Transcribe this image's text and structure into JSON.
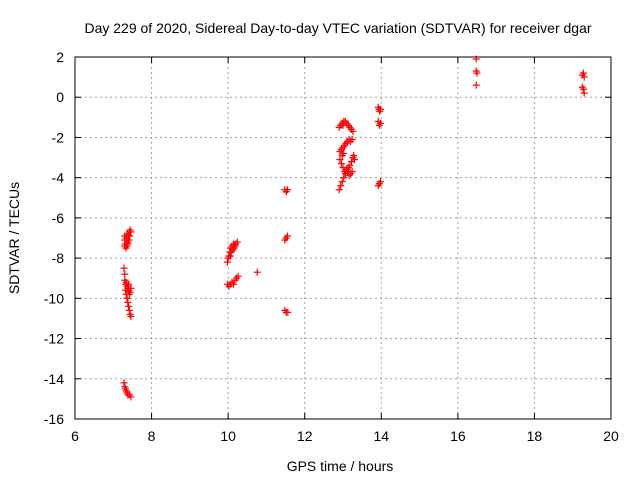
{
  "chart_data": {
    "type": "scatter",
    "title": "Day 229 of 2020, Sidereal Day-to-day VTEC variation (SDTVAR) for receiver dgar",
    "xlabel": "GPS time / hours",
    "ylabel": "SDTVAR / TECUs",
    "xlim": [
      6,
      20
    ],
    "ylim": [
      -16,
      2
    ],
    "xticks": [
      6,
      8,
      10,
      12,
      14,
      16,
      18,
      20
    ],
    "yticks": [
      -16,
      -14,
      -12,
      -10,
      -8,
      -6,
      -4,
      -2,
      0,
      2
    ],
    "grid": true,
    "marker": "plus",
    "color": "#ff0000",
    "series": [
      {
        "points": [
          [
            7.3,
            -6.9
          ],
          [
            7.3,
            -7.1
          ],
          [
            7.32,
            -7.3
          ],
          [
            7.34,
            -7.0
          ],
          [
            7.36,
            -6.8
          ],
          [
            7.38,
            -7.2
          ],
          [
            7.4,
            -6.9
          ],
          [
            7.42,
            -6.7
          ],
          [
            7.44,
            -6.6
          ],
          [
            7.46,
            -6.7
          ],
          [
            7.3,
            -7.4
          ],
          [
            7.33,
            -7.5
          ],
          [
            7.36,
            -7.4
          ],
          [
            7.38,
            -7.3
          ],
          [
            7.41,
            -7.1
          ],
          [
            7.43,
            -6.9
          ],
          [
            7.28,
            -8.5
          ],
          [
            7.3,
            -8.8
          ],
          [
            7.3,
            -9.1
          ],
          [
            7.32,
            -9.3
          ],
          [
            7.34,
            -9.2
          ],
          [
            7.36,
            -9.4
          ],
          [
            7.38,
            -9.5
          ],
          [
            7.4,
            -9.6
          ],
          [
            7.42,
            -9.8
          ],
          [
            7.44,
            -9.7
          ],
          [
            7.46,
            -9.5
          ],
          [
            7.34,
            -9.8
          ],
          [
            7.36,
            -10.0
          ],
          [
            7.38,
            -10.2
          ],
          [
            7.4,
            -10.4
          ],
          [
            7.42,
            -10.6
          ],
          [
            7.44,
            -10.8
          ],
          [
            7.46,
            -10.9
          ],
          [
            7.32,
            -9.6
          ],
          [
            7.4,
            -9.3
          ],
          [
            7.28,
            -14.2
          ],
          [
            7.3,
            -14.4
          ],
          [
            7.32,
            -14.5
          ],
          [
            7.34,
            -14.6
          ],
          [
            7.36,
            -14.7
          ],
          [
            7.38,
            -14.8
          ],
          [
            7.42,
            -14.8
          ],
          [
            7.46,
            -14.9
          ],
          [
            9.98,
            -8.2
          ],
          [
            10.0,
            -8.0
          ],
          [
            10.02,
            -7.9
          ],
          [
            10.04,
            -7.7
          ],
          [
            10.06,
            -7.5
          ],
          [
            10.08,
            -7.7
          ],
          [
            10.1,
            -7.4
          ],
          [
            10.12,
            -7.6
          ],
          [
            10.14,
            -7.3
          ],
          [
            10.16,
            -7.5
          ],
          [
            10.18,
            -7.4
          ],
          [
            10.2,
            -7.3
          ],
          [
            10.24,
            -7.2
          ],
          [
            10.06,
            -7.9
          ],
          [
            9.98,
            -9.3
          ],
          [
            10.02,
            -9.4
          ],
          [
            10.06,
            -9.3
          ],
          [
            10.1,
            -9.2
          ],
          [
            10.14,
            -9.3
          ],
          [
            10.18,
            -9.1
          ],
          [
            10.22,
            -9.0
          ],
          [
            10.26,
            -8.9
          ],
          [
            10.76,
            -8.7
          ],
          [
            11.48,
            -4.6
          ],
          [
            11.52,
            -4.7
          ],
          [
            11.55,
            -4.6
          ],
          [
            11.48,
            -7.1
          ],
          [
            11.52,
            -7.0
          ],
          [
            11.55,
            -6.9
          ],
          [
            11.48,
            -10.6
          ],
          [
            11.52,
            -10.7
          ],
          [
            11.56,
            -10.7
          ],
          [
            12.9,
            -4.6
          ],
          [
            12.94,
            -4.4
          ],
          [
            12.98,
            -4.2
          ],
          [
            13.02,
            -4.0
          ],
          [
            13.06,
            -3.8
          ],
          [
            13.1,
            -3.6
          ],
          [
            13.14,
            -3.5
          ],
          [
            13.18,
            -3.4
          ],
          [
            13.22,
            -3.2
          ],
          [
            13.26,
            -3.0
          ],
          [
            13.28,
            -2.9
          ],
          [
            13.3,
            -3.1
          ],
          [
            13.24,
            -3.7
          ],
          [
            13.2,
            -3.8
          ],
          [
            13.16,
            -3.9
          ],
          [
            13.12,
            -3.7
          ],
          [
            13.08,
            -3.6
          ],
          [
            13.04,
            -3.7
          ],
          [
            13.0,
            -3.5
          ],
          [
            12.96,
            -3.3
          ],
          [
            12.92,
            -3.1
          ],
          [
            12.92,
            -2.7
          ],
          [
            12.96,
            -2.6
          ],
          [
            13.0,
            -2.5
          ],
          [
            13.04,
            -2.4
          ],
          [
            13.08,
            -2.3
          ],
          [
            13.12,
            -2.2
          ],
          [
            13.16,
            -2.1
          ],
          [
            13.2,
            -2.2
          ],
          [
            13.24,
            -2.1
          ],
          [
            12.98,
            -2.9
          ],
          [
            13.02,
            -2.8
          ],
          [
            12.9,
            -1.5
          ],
          [
            12.94,
            -1.4
          ],
          [
            12.98,
            -1.3
          ],
          [
            13.02,
            -1.2
          ],
          [
            13.06,
            -1.2
          ],
          [
            13.1,
            -1.3
          ],
          [
            13.14,
            -1.4
          ],
          [
            13.18,
            -1.5
          ],
          [
            13.22,
            -1.6
          ],
          [
            13.26,
            -1.7
          ],
          [
            13.0,
            -1.4
          ],
          [
            13.92,
            -0.5
          ],
          [
            13.94,
            -0.6
          ],
          [
            13.96,
            -0.7
          ],
          [
            13.98,
            -0.6
          ],
          [
            13.92,
            -1.2
          ],
          [
            13.95,
            -1.4
          ],
          [
            13.98,
            -1.3
          ],
          [
            13.92,
            -4.4
          ],
          [
            13.95,
            -4.3
          ],
          [
            13.98,
            -4.2
          ],
          [
            16.48,
            1.9
          ],
          [
            16.48,
            1.3
          ],
          [
            16.5,
            1.2
          ],
          [
            16.48,
            0.6
          ],
          [
            19.25,
            1.1
          ],
          [
            19.28,
            1.2
          ],
          [
            19.3,
            1.0
          ],
          [
            19.25,
            0.5
          ],
          [
            19.28,
            0.4
          ],
          [
            19.3,
            0.2
          ]
        ]
      }
    ]
  }
}
